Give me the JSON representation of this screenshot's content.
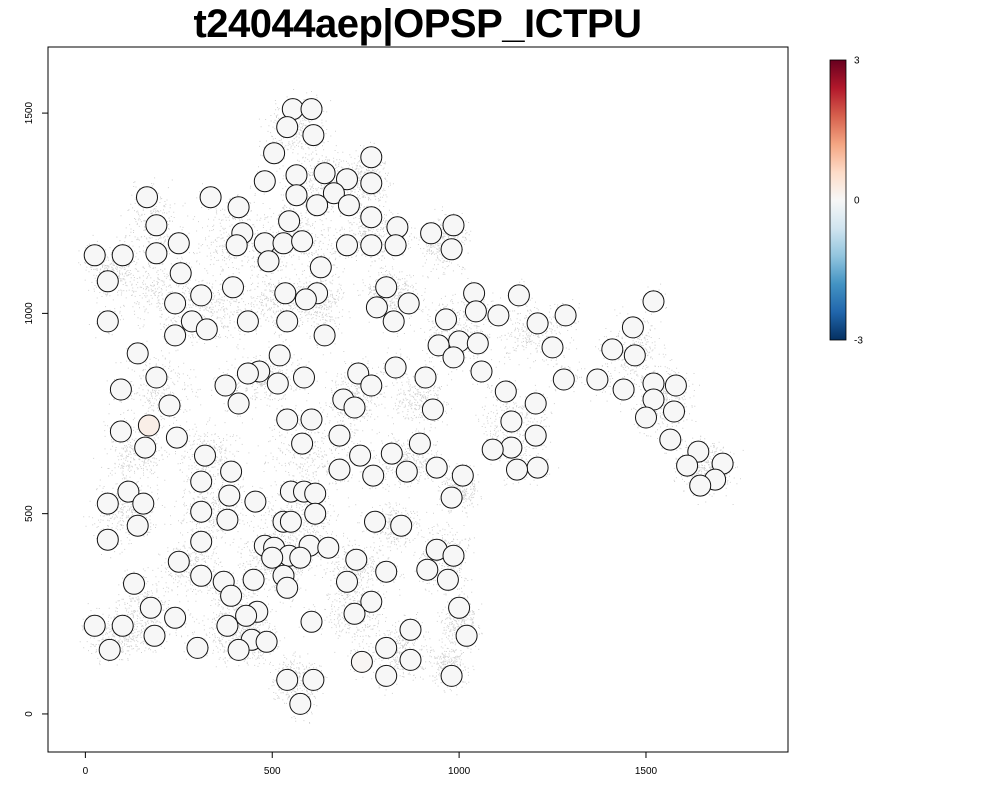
{
  "chart_data": {
    "type": "scatter",
    "title": "t24044aep|OPSP_ICTPU",
    "xlabel": "",
    "ylabel": "",
    "xlim": [
      -100,
      1880
    ],
    "ylim": [
      -95,
      1665
    ],
    "x_ticks": [
      0,
      500,
      1000,
      1500
    ],
    "y_ticks": [
      0,
      500,
      1000,
      1500
    ],
    "grid": false,
    "legend": "none",
    "colorbar": {
      "placement": "right",
      "min": -3,
      "max": 3,
      "ticks": [
        3,
        0,
        -3
      ],
      "colors": [
        "#053061",
        "#2166ac",
        "#4393c3",
        "#92c5de",
        "#d1e5f0",
        "#f7f7f7",
        "#fddbc7",
        "#f4a582",
        "#d6604d",
        "#b2182b",
        "#67001f"
      ]
    },
    "background_cloud_color": "#c8c8c8",
    "spots": [
      [
        555,
        1510,
        0
      ],
      [
        605,
        1510,
        0
      ],
      [
        540,
        1465,
        0
      ],
      [
        610,
        1445,
        0
      ],
      [
        505,
        1400,
        0
      ],
      [
        765,
        1390,
        0
      ],
      [
        565,
        1345,
        0
      ],
      [
        640,
        1350,
        0
      ],
      [
        480,
        1330,
        0
      ],
      [
        700,
        1335,
        0
      ],
      [
        765,
        1325,
        0
      ],
      [
        165,
        1290,
        0
      ],
      [
        335,
        1290,
        0
      ],
      [
        565,
        1295,
        0
      ],
      [
        665,
        1300,
        0
      ],
      [
        620,
        1270,
        0
      ],
      [
        410,
        1265,
        0
      ],
      [
        705,
        1270,
        0
      ],
      [
        190,
        1220,
        0
      ],
      [
        545,
        1230,
        0
      ],
      [
        765,
        1240,
        0
      ],
      [
        835,
        1215,
        0
      ],
      [
        985,
        1220,
        0
      ],
      [
        420,
        1200,
        0
      ],
      [
        925,
        1200,
        0
      ],
      [
        250,
        1175,
        0
      ],
      [
        405,
        1170,
        0
      ],
      [
        480,
        1175,
        0
      ],
      [
        530,
        1175,
        0
      ],
      [
        580,
        1180,
        0
      ],
      [
        700,
        1170,
        0
      ],
      [
        765,
        1170,
        0
      ],
      [
        830,
        1170,
        0
      ],
      [
        980,
        1160,
        0
      ],
      [
        25,
        1145,
        0
      ],
      [
        100,
        1145,
        0
      ],
      [
        190,
        1150,
        0
      ],
      [
        490,
        1130,
        0
      ],
      [
        630,
        1115,
        0
      ],
      [
        255,
        1100,
        0
      ],
      [
        60,
        1080,
        0
      ],
      [
        395,
        1065,
        0
      ],
      [
        805,
        1065,
        0
      ],
      [
        310,
        1045,
        0
      ],
      [
        535,
        1050,
        0
      ],
      [
        620,
        1050,
        0
      ],
      [
        1040,
        1050,
        0
      ],
      [
        1160,
        1045,
        0
      ],
      [
        240,
        1025,
        0
      ],
      [
        590,
        1035,
        0
      ],
      [
        865,
        1025,
        0
      ],
      [
        780,
        1015,
        0
      ],
      [
        1045,
        1005,
        0
      ],
      [
        1105,
        995,
        0
      ],
      [
        1285,
        995,
        0
      ],
      [
        1520,
        1030,
        0
      ],
      [
        285,
        980,
        0
      ],
      [
        60,
        980,
        0
      ],
      [
        435,
        980,
        0
      ],
      [
        540,
        980,
        0
      ],
      [
        825,
        980,
        0
      ],
      [
        965,
        985,
        0
      ],
      [
        1210,
        975,
        0
      ],
      [
        1465,
        965,
        0
      ],
      [
        240,
        945,
        0
      ],
      [
        325,
        960,
        0
      ],
      [
        640,
        945,
        0
      ],
      [
        1000,
        930,
        0
      ],
      [
        1050,
        925,
        0
      ],
      [
        945,
        920,
        0
      ],
      [
        1250,
        915,
        0
      ],
      [
        1410,
        910,
        0
      ],
      [
        1470,
        895,
        0
      ],
      [
        140,
        900,
        0
      ],
      [
        520,
        895,
        0
      ],
      [
        985,
        890,
        0
      ],
      [
        830,
        865,
        0
      ],
      [
        1060,
        855,
        0
      ],
      [
        465,
        855,
        0
      ],
      [
        435,
        850,
        0
      ],
      [
        730,
        850,
        0
      ],
      [
        190,
        840,
        0
      ],
      [
        585,
        840,
        0
      ],
      [
        910,
        840,
        0
      ],
      [
        1280,
        835,
        0
      ],
      [
        1370,
        835,
        0
      ],
      [
        1520,
        825,
        0
      ],
      [
        1580,
        820,
        0
      ],
      [
        375,
        820,
        0
      ],
      [
        515,
        825,
        0
      ],
      [
        765,
        820,
        0
      ],
      [
        95,
        810,
        0
      ],
      [
        1125,
        805,
        0
      ],
      [
        1440,
        810,
        0
      ],
      [
        1520,
        785,
        0
      ],
      [
        690,
        785,
        0
      ],
      [
        225,
        770,
        0
      ],
      [
        410,
        775,
        0
      ],
      [
        720,
        765,
        0
      ],
      [
        1205,
        775,
        0
      ],
      [
        930,
        760,
        0
      ],
      [
        1575,
        755,
        0
      ],
      [
        1500,
        740,
        0
      ],
      [
        540,
        735,
        0
      ],
      [
        605,
        735,
        0
      ],
      [
        1140,
        730,
        0
      ],
      [
        170,
        720,
        0.2
      ],
      [
        95,
        705,
        0
      ],
      [
        680,
        695,
        0
      ],
      [
        245,
        690,
        0
      ],
      [
        1565,
        685,
        0
      ],
      [
        1205,
        695,
        0
      ],
      [
        580,
        675,
        0
      ],
      [
        895,
        675,
        0
      ],
      [
        160,
        665,
        0
      ],
      [
        1140,
        665,
        0
      ],
      [
        1090,
        660,
        0
      ],
      [
        1640,
        655,
        0
      ],
      [
        320,
        645,
        0
      ],
      [
        735,
        645,
        0
      ],
      [
        820,
        650,
        0
      ],
      [
        1610,
        620,
        0
      ],
      [
        1705,
        625,
        0
      ],
      [
        1210,
        615,
        0
      ],
      [
        940,
        615,
        0
      ],
      [
        1155,
        610,
        0
      ],
      [
        680,
        610,
        0
      ],
      [
        860,
        605,
        0
      ],
      [
        390,
        605,
        0
      ],
      [
        770,
        595,
        0
      ],
      [
        1010,
        595,
        0
      ],
      [
        1685,
        585,
        0
      ],
      [
        310,
        580,
        0
      ],
      [
        1645,
        570,
        0
      ],
      [
        115,
        555,
        0
      ],
      [
        550,
        555,
        0
      ],
      [
        585,
        555,
        0
      ],
      [
        615,
        550,
        0
      ],
      [
        385,
        545,
        0
      ],
      [
        980,
        540,
        0
      ],
      [
        60,
        525,
        0
      ],
      [
        155,
        525,
        0
      ],
      [
        455,
        530,
        0
      ],
      [
        310,
        505,
        0
      ],
      [
        615,
        500,
        0
      ],
      [
        530,
        480,
        0
      ],
      [
        550,
        480,
        0
      ],
      [
        380,
        485,
        0
      ],
      [
        775,
        480,
        0
      ],
      [
        845,
        470,
        0
      ],
      [
        140,
        470,
        0
      ],
      [
        60,
        435,
        0
      ],
      [
        310,
        430,
        0
      ],
      [
        480,
        420,
        0
      ],
      [
        505,
        415,
        0
      ],
      [
        600,
        420,
        0
      ],
      [
        650,
        415,
        0
      ],
      [
        940,
        410,
        0
      ],
      [
        545,
        395,
        0
      ],
      [
        575,
        390,
        0
      ],
      [
        500,
        390,
        0
      ],
      [
        725,
        385,
        0
      ],
      [
        985,
        395,
        0
      ],
      [
        250,
        380,
        0
      ],
      [
        915,
        360,
        0
      ],
      [
        805,
        355,
        0
      ],
      [
        310,
        345,
        0
      ],
      [
        530,
        345,
        0
      ],
      [
        970,
        335,
        0
      ],
      [
        130,
        325,
        0
      ],
      [
        370,
        330,
        0
      ],
      [
        450,
        335,
        0
      ],
      [
        700,
        330,
        0
      ],
      [
        540,
        315,
        0
      ],
      [
        390,
        295,
        0
      ],
      [
        765,
        280,
        0
      ],
      [
        175,
        265,
        0
      ],
      [
        460,
        255,
        0
      ],
      [
        1000,
        265,
        0
      ],
      [
        430,
        245,
        0
      ],
      [
        720,
        250,
        0
      ],
      [
        240,
        240,
        0
      ],
      [
        605,
        230,
        0
      ],
      [
        25,
        220,
        0
      ],
      [
        100,
        220,
        0
      ],
      [
        380,
        220,
        0
      ],
      [
        870,
        210,
        0
      ],
      [
        185,
        195,
        0
      ],
      [
        1020,
        195,
        0
      ],
      [
        445,
        185,
        0
      ],
      [
        485,
        180,
        0
      ],
      [
        805,
        165,
        0
      ],
      [
        65,
        160,
        0
      ],
      [
        300,
        165,
        0
      ],
      [
        410,
        160,
        0
      ],
      [
        740,
        130,
        0.05
      ],
      [
        870,
        135,
        0
      ],
      [
        805,
        95,
        0
      ],
      [
        980,
        95,
        0
      ],
      [
        540,
        85,
        0
      ],
      [
        610,
        85,
        0
      ],
      [
        575,
        25,
        0
      ]
    ],
    "background_cloud": {
      "description_clusters": [
        [
          560,
          1460,
          90,
          70
        ],
        [
          640,
          1340,
          110,
          80
        ],
        [
          760,
          1330,
          60,
          70
        ],
        [
          760,
          1200,
          110,
          80
        ],
        [
          570,
          1200,
          150,
          120
        ],
        [
          390,
          1180,
          120,
          110
        ],
        [
          180,
          1220,
          80,
          110
        ],
        [
          70,
          1110,
          90,
          80
        ],
        [
          200,
          1050,
          120,
          90
        ],
        [
          340,
          1010,
          130,
          90
        ],
        [
          510,
          1030,
          110,
          80
        ],
        [
          630,
          1030,
          80,
          90
        ],
        [
          820,
          1060,
          90,
          70
        ],
        [
          960,
          1170,
          70,
          80
        ],
        [
          1000,
          970,
          120,
          100
        ],
        [
          1200,
          950,
          120,
          90
        ],
        [
          1470,
          900,
          90,
          110
        ],
        [
          1560,
          790,
          90,
          80
        ],
        [
          1660,
          620,
          90,
          70
        ],
        [
          1150,
          720,
          110,
          90
        ],
        [
          890,
          790,
          90,
          80
        ],
        [
          720,
          790,
          90,
          90
        ],
        [
          480,
          840,
          110,
          80
        ],
        [
          200,
          810,
          120,
          100
        ],
        [
          130,
          650,
          100,
          90
        ],
        [
          330,
          650,
          100,
          90
        ],
        [
          590,
          650,
          120,
          90
        ],
        [
          860,
          640,
          110,
          80
        ],
        [
          1000,
          560,
          60,
          60
        ],
        [
          100,
          510,
          100,
          80
        ],
        [
          330,
          510,
          110,
          90
        ],
        [
          570,
          470,
          140,
          110
        ],
        [
          830,
          470,
          90,
          70
        ],
        [
          960,
          400,
          80,
          90
        ],
        [
          280,
          370,
          100,
          80
        ],
        [
          500,
          380,
          120,
          80
        ],
        [
          730,
          360,
          110,
          80
        ],
        [
          160,
          260,
          120,
          90
        ],
        [
          400,
          250,
          120,
          90
        ],
        [
          720,
          250,
          90,
          90
        ],
        [
          1000,
          230,
          60,
          80
        ],
        [
          90,
          190,
          100,
          60
        ],
        [
          420,
          180,
          110,
          60
        ],
        [
          850,
          160,
          90,
          90
        ],
        [
          970,
          120,
          60,
          60
        ],
        [
          560,
          90,
          80,
          70
        ]
      ]
    }
  }
}
